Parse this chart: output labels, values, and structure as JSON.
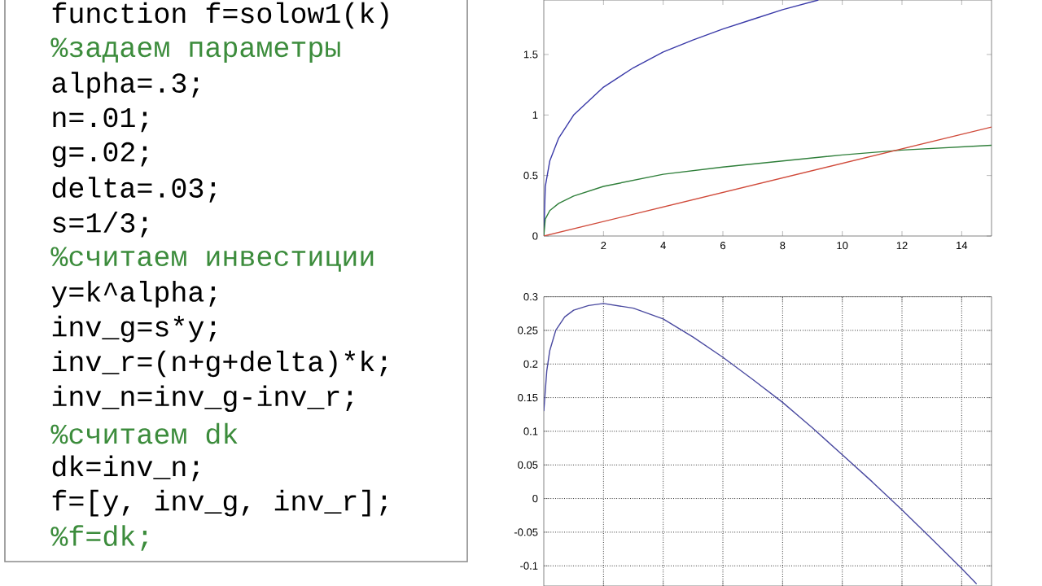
{
  "chart_data": [
    {
      "type": "other",
      "annotations": [
        "function f=solow1(k)",
        "%задаем параметры",
        "alpha=.3;",
        "n=.01;",
        "g=.02;",
        "delta=.03;",
        "s=1/3;",
        "%считаем инвестиции",
        "y=k^alpha;",
        "inv_g=s*y;",
        "inv_r=(n+g+delta)*k;",
        "inv_n=inv_g-inv_r;",
        "%считаем dk",
        "dk=inv_n;",
        "f=[y, inv_g, inv_r];",
        "%f=dk;"
      ],
      "colors": [
        "#000000",
        "#3c8c3c",
        "#000000",
        "#000000",
        "#000000",
        "#000000",
        "#000000",
        "#3c8c3c",
        "#000000",
        "#000000",
        "#000000",
        "#000000",
        "#3c8c3c",
        "#000000",
        "#000000",
        "#3c8c3c"
      ]
    },
    {
      "type": "line",
      "xlim": [
        0,
        15
      ],
      "ylim": [
        0,
        1.95
      ],
      "xticks": [
        2,
        4,
        6,
        8,
        10,
        12,
        14
      ],
      "yticks": [
        0,
        0.5,
        1,
        1.5
      ],
      "grid": false,
      "series": [
        {
          "color": "#3a3aa8",
          "x": [
            0,
            0.05,
            0.2,
            0.5,
            1,
            2,
            3,
            4,
            5,
            6,
            7,
            8,
            9.2
          ],
          "values": [
            0,
            0.41,
            0.62,
            0.81,
            1.0,
            1.23,
            1.39,
            1.52,
            1.62,
            1.71,
            1.79,
            1.87,
            1.95
          ]
        },
        {
          "color": "#2f7f3a",
          "x": [
            0,
            0.05,
            0.2,
            0.5,
            1,
            2,
            4,
            6,
            8,
            10,
            12,
            15
          ],
          "values": [
            0,
            0.14,
            0.21,
            0.27,
            0.33,
            0.41,
            0.51,
            0.57,
            0.62,
            0.67,
            0.71,
            0.75
          ]
        },
        {
          "color": "#d04a3a",
          "x": [
            0,
            15
          ],
          "values": [
            0,
            0.9
          ]
        }
      ]
    },
    {
      "type": "line",
      "xlim": [
        0,
        15
      ],
      "ylim": [
        -0.13,
        0.3
      ],
      "xticks": [
        2,
        4,
        6,
        8,
        10,
        12,
        14
      ],
      "yticks": [
        -0.1,
        -0.05,
        0,
        0.05,
        0.1,
        0.15,
        0.2,
        0.25,
        0.3
      ],
      "grid": true,
      "tick_labels": "y",
      "series": [
        {
          "color": "#4a4aa0",
          "x": [
            0,
            0.05,
            0.1,
            0.2,
            0.4,
            0.7,
            1,
            1.5,
            2,
            3,
            4,
            5,
            6,
            7,
            8,
            9,
            10,
            11,
            12,
            13,
            14,
            14.5
          ],
          "values": [
            0.13,
            0.16,
            0.19,
            0.22,
            0.25,
            0.27,
            0.28,
            0.287,
            0.29,
            0.283,
            0.267,
            0.24,
            0.21,
            0.177,
            0.143,
            0.105,
            0.065,
            0.025,
            -0.017,
            -0.06,
            -0.104,
            -0.127
          ]
        }
      ]
    }
  ]
}
